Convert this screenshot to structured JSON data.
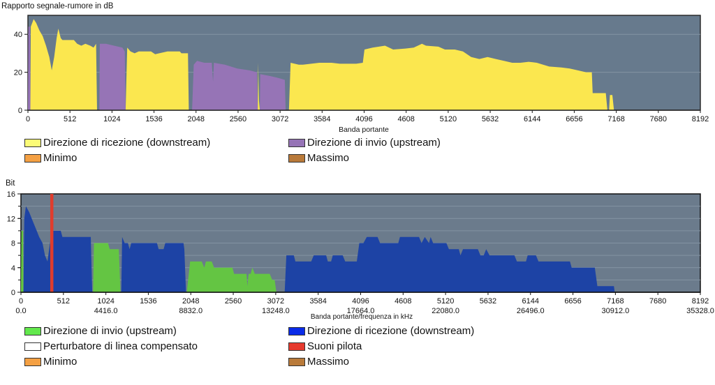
{
  "chart_data": [
    {
      "type": "area",
      "title": "Rapporto segnale-rumore in dB",
      "xlabel": "Banda portante",
      "ylabel": "",
      "xlim": [
        0,
        8192
      ],
      "ylim": [
        0,
        50
      ],
      "xticks": [
        "0",
        "512",
        "1024",
        "1536",
        "2048",
        "2560",
        "3072",
        "3584",
        "4096",
        "4608",
        "5120",
        "5632",
        "6144",
        "6656",
        "7168",
        "7680",
        "8192"
      ],
      "yticks": [
        "0",
        "20",
        "40"
      ],
      "grid": true,
      "legend": [
        {
          "label": "Direzione di ricezione (downstream)",
          "color": "#fbe74f"
        },
        {
          "label": "Direzione di invio (upstream)",
          "color": "#9674b6"
        },
        {
          "label": "Minimo",
          "color": "#f4a043"
        },
        {
          "label": "Massimo",
          "color": "#b97a3a"
        }
      ],
      "series": [
        {
          "name": "Direzione di invio (upstream)",
          "color": "#9674b6",
          "points": [
            [
              0,
              0
            ],
            [
              5,
              44
            ],
            [
              25,
              44
            ],
            [
              30,
              0
            ],
            [
              870,
              0
            ],
            [
              875,
              35
            ],
            [
              950,
              35
            ],
            [
              1050,
              34
            ],
            [
              1150,
              33
            ],
            [
              1180,
              31
            ],
            [
              1190,
              0
            ],
            [
              2000,
              0
            ],
            [
              2020,
              24
            ],
            [
              2060,
              26
            ],
            [
              2150,
              25
            ],
            [
              2240,
              25
            ],
            [
              2255,
              15
            ],
            [
              2265,
              25
            ],
            [
              2400,
              24
            ],
            [
              2550,
              22
            ],
            [
              2700,
              21
            ],
            [
              2790,
              20
            ],
            [
              2800,
              0
            ],
            [
              2825,
              0
            ],
            [
              2830,
              19
            ],
            [
              2950,
              18
            ],
            [
              3050,
              17
            ],
            [
              3130,
              16
            ],
            [
              3140,
              0
            ]
          ]
        },
        {
          "name": "Direzione di ricezione (downstream)",
          "color": "#fbe74f",
          "points": [
            [
              30,
              0
            ],
            [
              35,
              44
            ],
            [
              70,
              48
            ],
            [
              100,
              46
            ],
            [
              140,
              42
            ],
            [
              180,
              39
            ],
            [
              220,
              34
            ],
            [
              260,
              28
            ],
            [
              290,
              21
            ],
            [
              320,
              28
            ],
            [
              350,
              38
            ],
            [
              370,
              43
            ],
            [
              400,
              38
            ],
            [
              420,
              37
            ],
            [
              560,
              37
            ],
            [
              600,
              35
            ],
            [
              650,
              34
            ],
            [
              700,
              35
            ],
            [
              760,
              34
            ],
            [
              800,
              33
            ],
            [
              830,
              35
            ],
            [
              842,
              0
            ],
            [
              1190,
              0
            ],
            [
              1210,
              33
            ],
            [
              1250,
              31
            ],
            [
              1300,
              30
            ],
            [
              1350,
              31
            ],
            [
              1500,
              31
            ],
            [
              1550,
              29.5
            ],
            [
              1600,
              30
            ],
            [
              1700,
              31
            ],
            [
              1850,
              31
            ],
            [
              1870,
              30
            ],
            [
              1950,
              30
            ],
            [
              1960,
              0
            ],
            [
              2800,
              0
            ],
            [
              2805,
              25
            ],
            [
              2815,
              5
            ],
            [
              2825,
              0
            ],
            [
              3180,
              0
            ],
            [
              3200,
              25
            ],
            [
              3300,
              24
            ],
            [
              3350,
              24
            ],
            [
              3450,
              24.5
            ],
            [
              3550,
              25
            ],
            [
              3700,
              25
            ],
            [
              3800,
              24.5
            ],
            [
              4000,
              24.5
            ],
            [
              4080,
              25
            ],
            [
              4100,
              32
            ],
            [
              4200,
              33
            ],
            [
              4350,
              34
            ],
            [
              4450,
              32
            ],
            [
              4600,
              32.5
            ],
            [
              4700,
              33
            ],
            [
              4800,
              35
            ],
            [
              4850,
              34
            ],
            [
              5000,
              33.5
            ],
            [
              5080,
              32
            ],
            [
              5200,
              32
            ],
            [
              5300,
              31
            ],
            [
              5400,
              28
            ],
            [
              5500,
              27
            ],
            [
              5600,
              28
            ],
            [
              5700,
              27
            ],
            [
              5800,
              26
            ],
            [
              5900,
              25
            ],
            [
              6000,
              25
            ],
            [
              6100,
              25.5
            ],
            [
              6200,
              25
            ],
            [
              6350,
              23
            ],
            [
              6500,
              22.5
            ],
            [
              6600,
              22
            ],
            [
              6700,
              21
            ],
            [
              6800,
              20
            ],
            [
              6870,
              20
            ],
            [
              6880,
              9
            ],
            [
              7040,
              9
            ],
            [
              7060,
              0
            ],
            [
              7080,
              0
            ],
            [
              7090,
              8
            ],
            [
              7120,
              8
            ],
            [
              7140,
              0
            ]
          ]
        }
      ]
    },
    {
      "type": "area",
      "title": "Bit",
      "xlabel": "Banda portante/frequenza in kHz",
      "ylabel": "",
      "xlim": [
        0,
        8192
      ],
      "ylim": [
        0,
        16
      ],
      "xticks": [
        "0",
        "512",
        "1024",
        "1536",
        "2048",
        "2560",
        "3072",
        "3584",
        "4096",
        "4608",
        "5120",
        "5632",
        "6144",
        "6656",
        "7168",
        "7680",
        "8192"
      ],
      "xticks_khz": [
        "0.0",
        "",
        "4416.0",
        "",
        "8832.0",
        "",
        "13248.0",
        "",
        "17664.0",
        "",
        "22080.0",
        "",
        "26496.0",
        "",
        "30912.0",
        "",
        "35328.0"
      ],
      "yticks": [
        "0",
        "4",
        "8",
        "12",
        "16"
      ],
      "grid": true,
      "legend": [
        {
          "label": "Direzione di invio (upstream)",
          "color": "#62e84c"
        },
        {
          "label": "Direzione di ricezione (downstream)",
          "color": "#0a2be8"
        },
        {
          "label": "Perturbatore di linea compensato",
          "color": "#ffffff"
        },
        {
          "label": "Suoni pilota",
          "color": "#e63a2e"
        },
        {
          "label": "Minimo",
          "color": "#f4a043"
        },
        {
          "label": "Massimo",
          "color": "#b97a3a"
        }
      ],
      "pilot_tone_carrier": 370,
      "series": [
        {
          "name": "Direzione di invio (upstream)",
          "color": "#64c543",
          "points": [
            [
              0,
              0
            ],
            [
              5,
              10
            ],
            [
              25,
              10
            ],
            [
              30,
              0
            ],
            [
              870,
              0
            ],
            [
              880,
              8
            ],
            [
              1050,
              8
            ],
            [
              1070,
              7
            ],
            [
              1180,
              7
            ],
            [
              1200,
              0
            ],
            [
              2000,
              0
            ],
            [
              2040,
              5
            ],
            [
              2180,
              5
            ],
            [
              2210,
              4
            ],
            [
              2230,
              5
            ],
            [
              2300,
              5
            ],
            [
              2330,
              4
            ],
            [
              2550,
              4
            ],
            [
              2570,
              3
            ],
            [
              2720,
              3
            ],
            [
              2730,
              1
            ],
            [
              2745,
              3
            ],
            [
              2770,
              3
            ],
            [
              2790,
              4
            ],
            [
              2820,
              3
            ],
            [
              2950,
              3
            ],
            [
              3000,
              3
            ],
            [
              3030,
              2
            ],
            [
              3060,
              2
            ],
            [
              3080,
              0
            ]
          ]
        },
        {
          "name": "Direzione di ricezione (downstream)",
          "color": "#1d43a5",
          "points": [
            [
              30,
              0
            ],
            [
              40,
              12
            ],
            [
              60,
              14
            ],
            [
              100,
              13
            ],
            [
              130,
              12
            ],
            [
              160,
              11
            ],
            [
              190,
              10
            ],
            [
              220,
              9
            ],
            [
              260,
              8
            ],
            [
              290,
              6
            ],
            [
              320,
              5
            ],
            [
              350,
              8
            ],
            [
              380,
              10
            ],
            [
              480,
              10
            ],
            [
              500,
              9
            ],
            [
              842,
              9
            ],
            [
              860,
              0
            ],
            [
              1210,
              0
            ],
            [
              1220,
              9
            ],
            [
              1250,
              8
            ],
            [
              1290,
              8
            ],
            [
              1310,
              7
            ],
            [
              1330,
              8
            ],
            [
              1640,
              8
            ],
            [
              1660,
              7
            ],
            [
              1720,
              7
            ],
            [
              1740,
              8
            ],
            [
              1960,
              8
            ],
            [
              1970,
              7
            ],
            [
              1990,
              0
            ],
            [
              3180,
              0
            ],
            [
              3200,
              6
            ],
            [
              3290,
              6
            ],
            [
              3310,
              5
            ],
            [
              3500,
              5
            ],
            [
              3530,
              6
            ],
            [
              3680,
              6
            ],
            [
              3700,
              5
            ],
            [
              3740,
              5
            ],
            [
              3760,
              6
            ],
            [
              3880,
              6
            ],
            [
              3910,
              5
            ],
            [
              4050,
              5
            ],
            [
              4080,
              8
            ],
            [
              4130,
              8
            ],
            [
              4170,
              9
            ],
            [
              4300,
              9
            ],
            [
              4330,
              8
            ],
            [
              4550,
              8
            ],
            [
              4570,
              9
            ],
            [
              4800,
              9
            ],
            [
              4830,
              8
            ],
            [
              4870,
              9
            ],
            [
              4920,
              8
            ],
            [
              4940,
              9
            ],
            [
              4970,
              8
            ],
            [
              5130,
              8
            ],
            [
              5160,
              7
            ],
            [
              5280,
              7
            ],
            [
              5300,
              6
            ],
            [
              5330,
              7
            ],
            [
              5510,
              7
            ],
            [
              5540,
              6
            ],
            [
              5580,
              6
            ],
            [
              5610,
              7
            ],
            [
              5650,
              6
            ],
            [
              5950,
              6
            ],
            [
              5980,
              5
            ],
            [
              6090,
              5
            ],
            [
              6110,
              6
            ],
            [
              6210,
              6
            ],
            [
              6240,
              5
            ],
            [
              6620,
              5
            ],
            [
              6640,
              4
            ],
            [
              6920,
              4
            ],
            [
              6950,
              1
            ],
            [
              7150,
              1
            ],
            [
              7160,
              0
            ]
          ]
        }
      ]
    }
  ]
}
